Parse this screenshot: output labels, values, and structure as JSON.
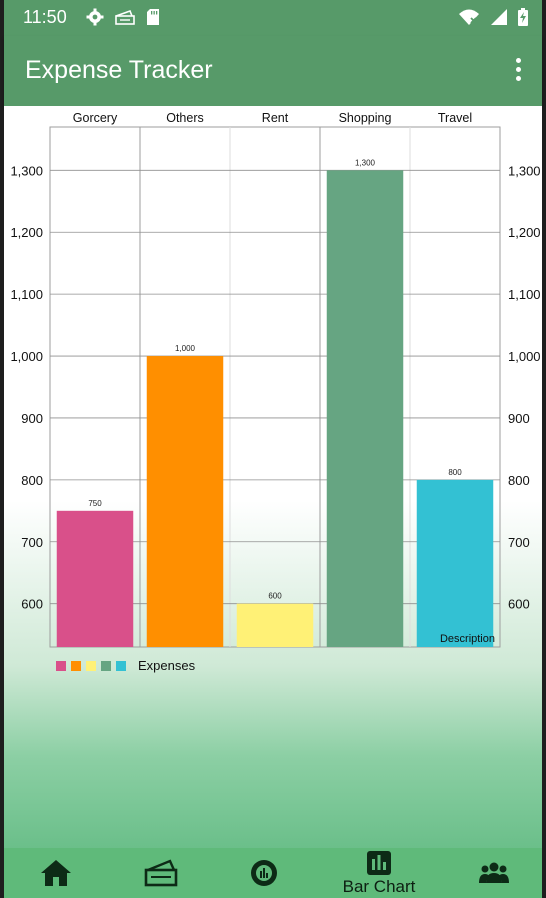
{
  "status_bar": {
    "time": "11:50",
    "left_icons": [
      "gear-icon",
      "ticket-icon",
      "sd-card-icon"
    ],
    "right_icons": [
      "wifi-icon",
      "signal-icon",
      "battery-charging-icon"
    ]
  },
  "app_bar": {
    "title": "Expense Tracker",
    "menu_icon": "overflow-menu-icon"
  },
  "colors": {
    "primary": "#579a69",
    "bar_colors": [
      "#d9508a",
      "#ff8f00",
      "#fff176",
      "#66a582",
      "#33c1d3"
    ]
  },
  "chart_data": {
    "type": "bar",
    "categories": [
      "Gorcery",
      "Others",
      "Rent",
      "Shopping",
      "Travel"
    ],
    "series": [
      {
        "name": "Expenses",
        "values": [
          750,
          1000,
          600,
          1300,
          800
        ]
      }
    ],
    "value_labels": [
      "750",
      "1,000",
      "600",
      "1,300",
      "800"
    ],
    "ylim": [
      530,
      1370
    ],
    "yticks": [
      600,
      700,
      800,
      900,
      1000,
      1100,
      1200,
      1300
    ],
    "ytick_labels": [
      "600",
      "700",
      "800",
      "900",
      "1,000",
      "1,100",
      "1,200",
      "1,300"
    ],
    "description": "Description",
    "legend_label": "Expenses",
    "legend_position": "bottom-left",
    "grid": true,
    "dual_y_axis": true
  },
  "bottom_nav": {
    "items": [
      {
        "icon": "home-icon",
        "label": ""
      },
      {
        "icon": "wallet-icon",
        "label": ""
      },
      {
        "icon": "pie-chart-icon",
        "label": ""
      },
      {
        "icon": "bar-chart-icon",
        "label": "Bar Chart",
        "selected": true
      },
      {
        "icon": "group-icon",
        "label": ""
      }
    ]
  }
}
